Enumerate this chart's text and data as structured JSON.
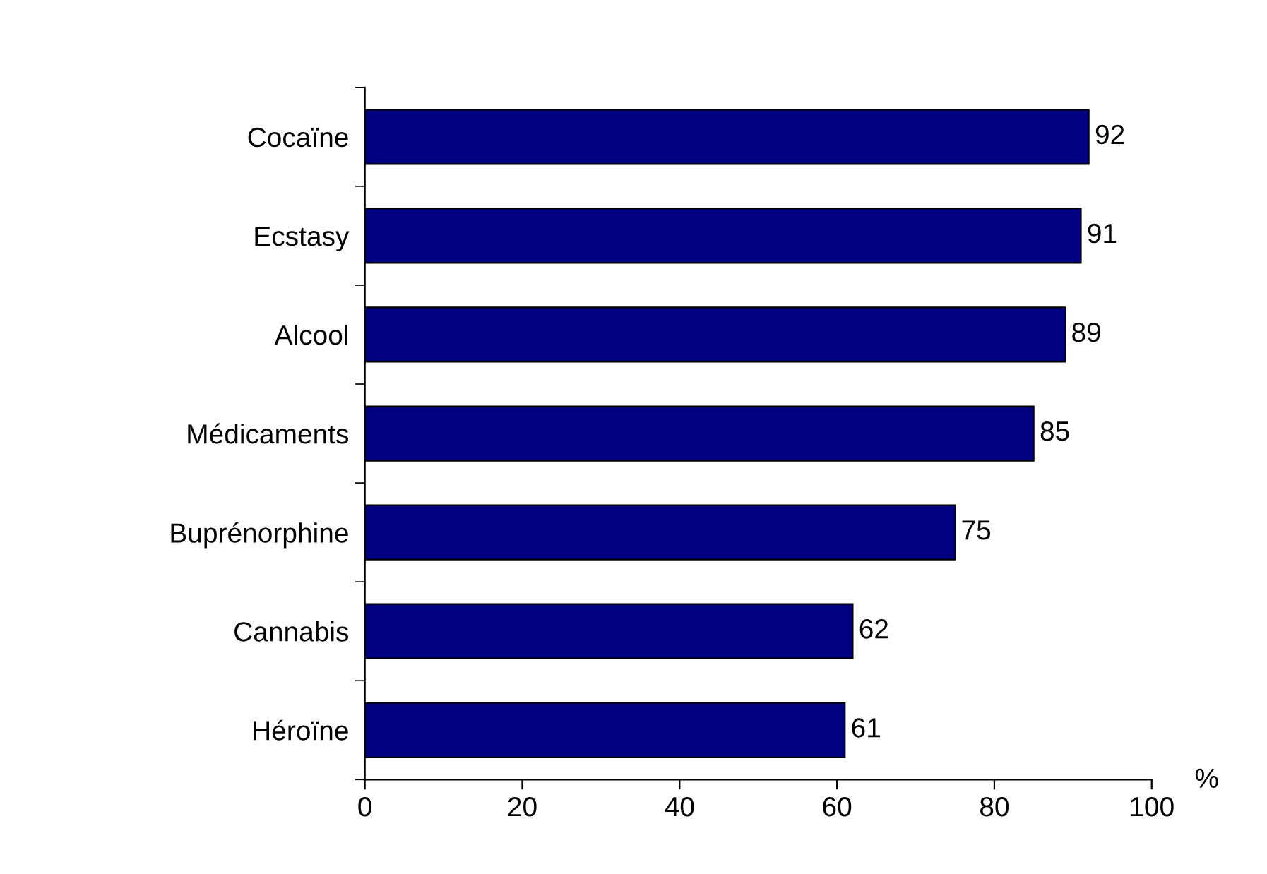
{
  "chart_data": {
    "type": "bar",
    "orientation": "horizontal",
    "categories": [
      "Cocaïne",
      "Ecstasy",
      "Alcool",
      "Médicaments",
      "Buprénorphine",
      "Cannabis",
      "Héroïne"
    ],
    "values": [
      92,
      91,
      89,
      85,
      75,
      62,
      61
    ],
    "color": "#000080",
    "xlim": [
      0,
      100
    ],
    "xticks": [
      0,
      20,
      40,
      60,
      80,
      100
    ],
    "xlabel": "%",
    "data_labels": true,
    "grid": false,
    "legend": false
  }
}
